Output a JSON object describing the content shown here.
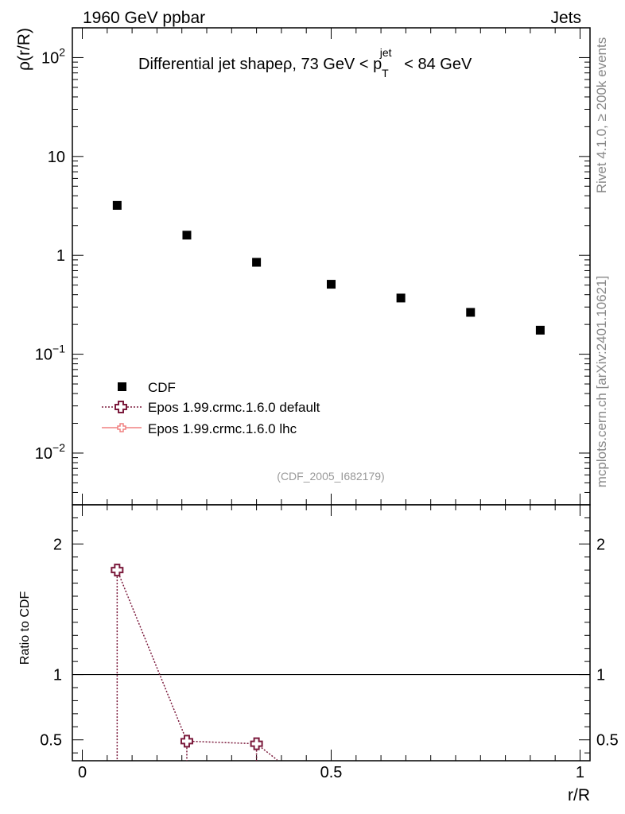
{
  "header": {
    "left": "1960 GeV ppbar",
    "right": "Jets"
  },
  "side_texts": {
    "top": "Rivet 4.1.0, ≥ 200k events",
    "bottom": "mcplots.cern.ch [arXiv:2401.10621]"
  },
  "chart_data": {
    "type": "scatter",
    "title": "Differential jet shapeρ, 73 GeV < p",
    "title_sup": "jet",
    "title_sub": "T",
    "title_tail": "< 84 GeV",
    "watermark": "(CDF_2005_I682179)",
    "xlabel": "r/R",
    "ylabel_main": "ρ(r/R)",
    "ylabel_ratio": "Ratio to CDF",
    "xlim": [
      -0.02,
      1.02
    ],
    "ylim_main": [
      0.003,
      200
    ],
    "yscale_main": "log",
    "ylim_ratio": [
      0.34,
      2.3
    ],
    "x_ticks": [
      "0",
      "0.5",
      "1"
    ],
    "y_ticks_main": [
      {
        "mantissa": "10",
        "exp": "−2",
        "value": 0.01
      },
      {
        "mantissa": "10",
        "exp": "−1",
        "value": 0.1
      },
      {
        "mantissa": "1",
        "exp": "",
        "value": 1
      },
      {
        "mantissa": "10",
        "exp": "",
        "value": 10
      },
      {
        "mantissa": "10",
        "exp": "2",
        "value": 100
      }
    ],
    "y_ticks_ratio": [
      "0.5",
      "1",
      "2"
    ],
    "legend_position": "lower-left",
    "series": [
      {
        "name": "CDF",
        "marker": "square",
        "color": "#000000",
        "x": [
          0.07,
          0.21,
          0.35,
          0.5,
          0.64,
          0.78,
          0.92
        ],
        "y": [
          3.2,
          1.6,
          0.85,
          0.51,
          0.37,
          0.265,
          0.175
        ]
      },
      {
        "name": "Epos 1.99.crmc.1.6.0 default",
        "marker": "open-cross",
        "line": "dotted",
        "color": "#7b1a3c",
        "x": [
          0.07,
          0.21,
          0.35
        ],
        "ratio": [
          1.8,
          0.49,
          0.47
        ]
      },
      {
        "name": "Epos 1.99.crmc.1.6.0 lhc",
        "marker": "small-cross",
        "line": "solid",
        "color": "#f08080",
        "x": [],
        "ratio": []
      }
    ]
  }
}
